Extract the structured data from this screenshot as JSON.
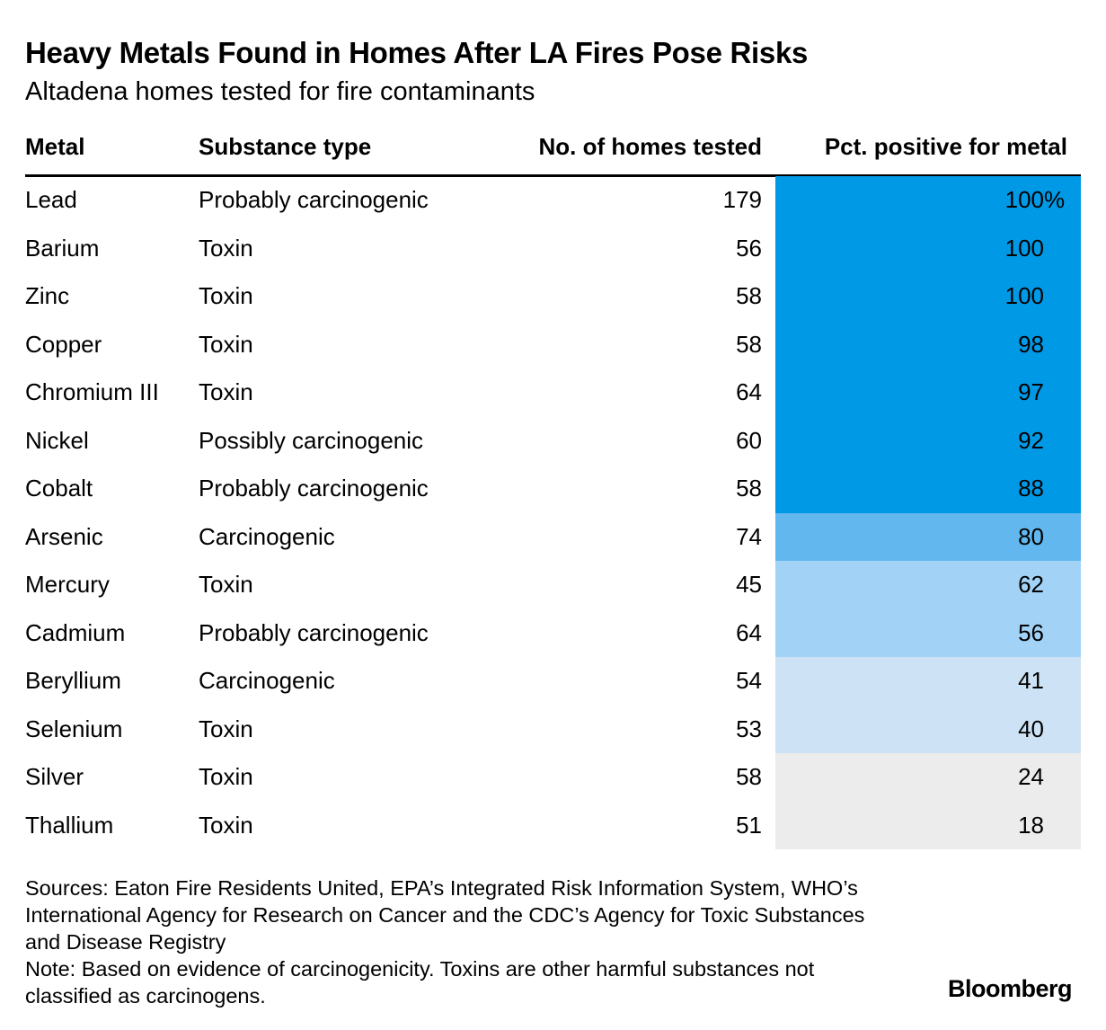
{
  "title": "Heavy Metals Found in Homes After LA Fires Pose Risks",
  "subtitle": "Altadena homes tested for fire contaminants",
  "headers": {
    "metal": "Metal",
    "type": "Substance type",
    "homes": "No. of homes tested",
    "pct": "Pct. positive for metal"
  },
  "chart_data": {
    "type": "table",
    "title": "Heavy Metals Found in Homes After LA Fires Pose Risks",
    "subtitle": "Altadena homes tested for fire contaminants",
    "columns": [
      "Metal",
      "Substance type",
      "No. of homes tested",
      "Pct. positive for metal"
    ],
    "rows": [
      {
        "metal": "Lead",
        "type": "Probably carcinogenic",
        "homes": "179",
        "pct": "100%",
        "value": 100,
        "color": "#0099e6"
      },
      {
        "metal": "Barium",
        "type": "Toxin",
        "homes": "56",
        "pct": "100",
        "value": 100,
        "color": "#0099e6"
      },
      {
        "metal": "Zinc",
        "type": "Toxin",
        "homes": "58",
        "pct": "100",
        "value": 100,
        "color": "#0099e6"
      },
      {
        "metal": "Copper",
        "type": "Toxin",
        "homes": "58",
        "pct": "98",
        "value": 98,
        "color": "#0099e6"
      },
      {
        "metal": "Chromium III",
        "type": "Toxin",
        "homes": "64",
        "pct": "97",
        "value": 97,
        "color": "#0099e6"
      },
      {
        "metal": "Nickel",
        "type": "Possibly carcinogenic",
        "homes": "60",
        "pct": "92",
        "value": 92,
        "color": "#0099e6"
      },
      {
        "metal": "Cobalt",
        "type": "Probably carcinogenic",
        "homes": "58",
        "pct": "88",
        "value": 88,
        "color": "#0099e6"
      },
      {
        "metal": "Arsenic",
        "type": "Carcinogenic",
        "homes": "74",
        "pct": "80",
        "value": 80,
        "color": "#62b7ee"
      },
      {
        "metal": "Mercury",
        "type": "Toxin",
        "homes": "45",
        "pct": "62",
        "value": 62,
        "color": "#a2d3f6"
      },
      {
        "metal": "Cadmium",
        "type": "Probably carcinogenic",
        "homes": "64",
        "pct": "56",
        "value": 56,
        "color": "#a2d3f6"
      },
      {
        "metal": "Beryllium",
        "type": "Carcinogenic",
        "homes": "54",
        "pct": "41",
        "value": 41,
        "color": "#cde3f5"
      },
      {
        "metal": "Selenium",
        "type": "Toxin",
        "homes": "53",
        "pct": "40",
        "value": 40,
        "color": "#cde3f5"
      },
      {
        "metal": "Silver",
        "type": "Toxin",
        "homes": "58",
        "pct": "24",
        "value": 24,
        "color": "#ececec"
      },
      {
        "metal": "Thallium",
        "type": "Toxin",
        "homes": "51",
        "pct": "18",
        "value": 18,
        "color": "#ececec"
      }
    ]
  },
  "sources": "Sources: Eaton Fire Residents United, EPA’s Integrated Risk Information System, WHO’s International Agency for Research on Cancer and the CDC’s Agency for Toxic Substances and Disease Registry",
  "note": "Note: Based on evidence of carcinogenicity. Toxins are other harmful substances not classified as carcinogens.",
  "brand": "Bloomberg"
}
